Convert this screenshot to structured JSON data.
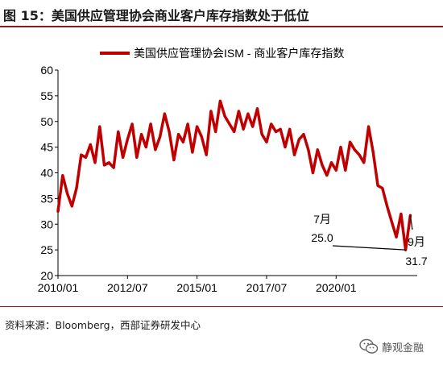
{
  "figure_title": "图 15：美国供应管理协会商业客户库存指数处于低位",
  "source": "资料来源：Bloomberg，西部证券研发中心",
  "watermark": "静观金融",
  "colors": {
    "series": "#c00000",
    "axis": "#000000",
    "rule": "#8b1a1a"
  },
  "icons": {
    "watermark": "wechat-icon"
  },
  "chart_data": {
    "type": "line",
    "title": "",
    "xlabel": "",
    "ylabel": "",
    "ylim": [
      20,
      60
    ],
    "yticks": [
      20,
      25,
      30,
      35,
      40,
      45,
      50,
      55,
      60
    ],
    "xlim": [
      "2010/01",
      "2022/12"
    ],
    "xticks": [
      "2010/01",
      "2012/07",
      "2015/01",
      "2017/07",
      "2020/01"
    ],
    "grid": false,
    "legend_position": "top",
    "series": [
      {
        "name": "美国供应管理协会ISM - 商业客户库存指数",
        "color": "#c00000",
        "x": [
          "2010/01",
          "2010/03",
          "2010/05",
          "2010/07",
          "2010/09",
          "2010/11",
          "2011/01",
          "2011/03",
          "2011/05",
          "2011/07",
          "2011/09",
          "2011/11",
          "2012/01",
          "2012/03",
          "2012/05",
          "2012/07",
          "2012/09",
          "2012/11",
          "2013/01",
          "2013/03",
          "2013/05",
          "2013/07",
          "2013/09",
          "2013/11",
          "2014/01",
          "2014/03",
          "2014/05",
          "2014/07",
          "2014/09",
          "2014/11",
          "2015/01",
          "2015/03",
          "2015/05",
          "2015/07",
          "2015/09",
          "2015/11",
          "2016/01",
          "2016/03",
          "2016/05",
          "2016/07",
          "2016/09",
          "2016/11",
          "2017/01",
          "2017/03",
          "2017/05",
          "2017/07",
          "2017/09",
          "2017/11",
          "2018/01",
          "2018/03",
          "2018/05",
          "2018/07",
          "2018/09",
          "2018/11",
          "2019/01",
          "2019/03",
          "2019/05",
          "2019/07",
          "2019/09",
          "2019/11",
          "2020/01",
          "2020/03",
          "2020/05",
          "2020/07",
          "2020/09",
          "2020/11",
          "2021/01",
          "2021/03",
          "2021/05",
          "2021/07",
          "2021/09",
          "2021/11",
          "2022/01",
          "2022/03",
          "2022/05",
          "2022/07",
          "2022/09"
        ],
        "values": [
          32.5,
          39.5,
          36.0,
          33.5,
          37.0,
          43.5,
          43.0,
          45.5,
          42.0,
          49.0,
          41.5,
          42.0,
          41.0,
          48.0,
          43.0,
          46.5,
          49.5,
          43.0,
          47.5,
          45.0,
          49.5,
          44.5,
          47.0,
          51.5,
          48.0,
          42.5,
          47.5,
          46.0,
          49.5,
          44.0,
          49.0,
          47.0,
          43.5,
          52.0,
          48.0,
          54.0,
          51.0,
          49.5,
          48.0,
          52.0,
          48.5,
          51.5,
          49.0,
          52.5,
          47.5,
          46.0,
          49.5,
          48.0,
          48.5,
          45.0,
          48.5,
          43.5,
          46.5,
          47.5,
          44.5,
          40.0,
          44.5,
          41.5,
          39.5,
          42.0,
          40.5,
          45.0,
          40.5,
          46.0,
          44.5,
          43.5,
          42.0,
          49.0,
          44.0,
          37.5,
          37.0,
          33.5,
          30.5,
          27.5,
          32.0,
          25.0,
          31.7
        ]
      }
    ],
    "annotations": [
      {
        "label": "7月",
        "value": "25.0",
        "x": "2022/07",
        "y": 25.0
      },
      {
        "label": "9月",
        "value": "31.7",
        "x": "2022/09",
        "y": 31.7
      }
    ]
  }
}
